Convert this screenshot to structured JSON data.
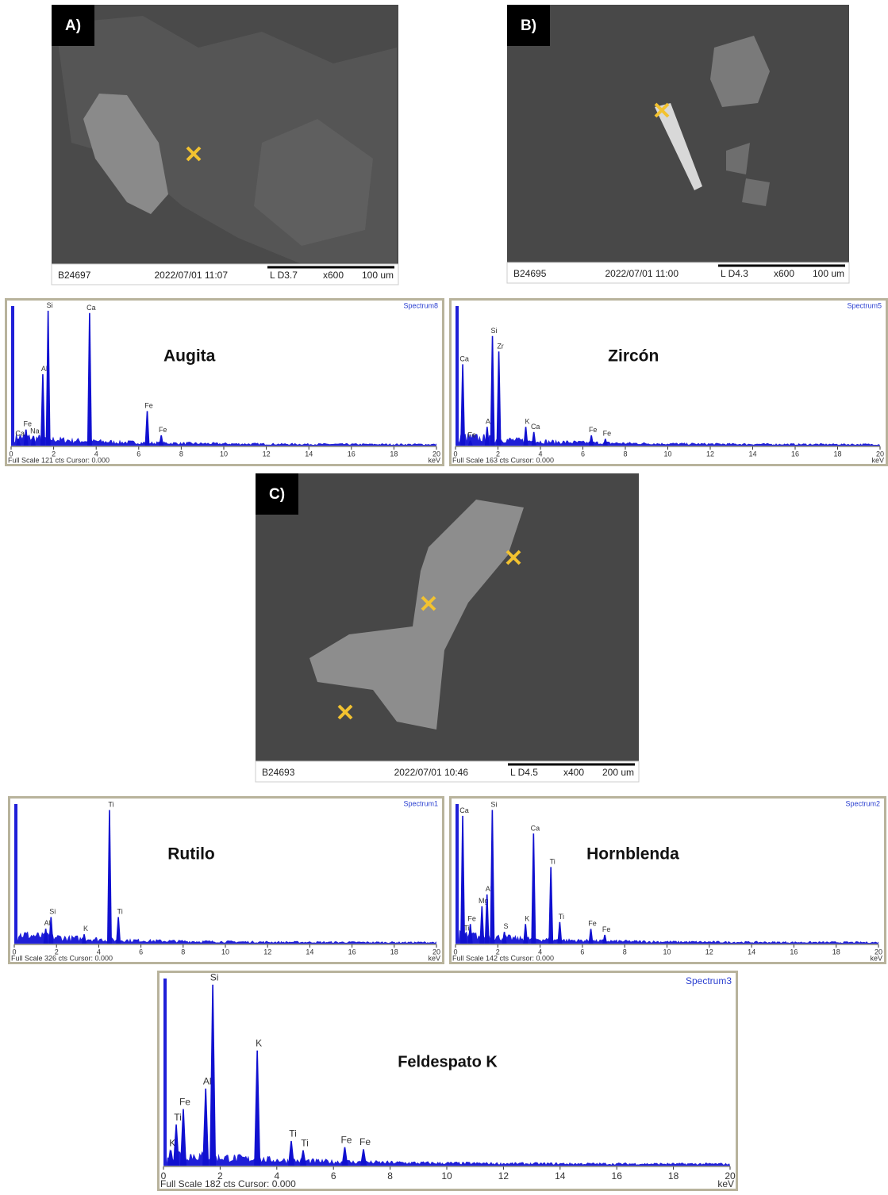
{
  "sem_images": [
    {
      "panel": "A)",
      "sample": "B24697",
      "datetime": "2022/07/01  11:07",
      "params": "L D3.7",
      "mag": "x600",
      "scale": "100 um"
    },
    {
      "panel": "B)",
      "sample": "B24695",
      "datetime": "2022/07/01  11:00",
      "params": "L D4.3",
      "mag": "x600",
      "scale": "100 um"
    },
    {
      "panel": "C)",
      "sample": "B24693",
      "datetime": "2022/07/01  10:46",
      "params": "L D4.5",
      "mag": "x400",
      "scale": "200 um"
    }
  ],
  "spectra": [
    {
      "mineral": "Augita",
      "spectrum": "Spectrum8",
      "footer": "Full Scale 121 cts Cursor: 0.000",
      "unit": "keV",
      "xlim": [
        0,
        20
      ],
      "xticks": [
        0,
        2,
        4,
        6,
        8,
        10,
        12,
        14,
        16,
        18,
        20
      ],
      "ylim": [
        0,
        121
      ],
      "peaks": [
        {
          "element": "Ca",
          "kev": 0.34,
          "cts": 6
        },
        {
          "element": "Fe",
          "kev": 0.7,
          "cts": 14
        },
        {
          "element": "Na",
          "kev": 1.04,
          "cts": 8
        },
        {
          "element": "Al",
          "kev": 1.49,
          "cts": 62
        },
        {
          "element": "Si",
          "kev": 1.74,
          "cts": 117
        },
        {
          "element": "Ca",
          "kev": 3.69,
          "cts": 115
        },
        {
          "element": "Fe",
          "kev": 6.4,
          "cts": 30
        },
        {
          "element": "Fe",
          "kev": 7.06,
          "cts": 9
        }
      ]
    },
    {
      "mineral": "Zircón",
      "spectrum": "Spectrum5",
      "footer": "Full Scale 163 cts Cursor: 0.000",
      "unit": "keV",
      "xlim": [
        0,
        20
      ],
      "xticks": [
        0,
        2,
        4,
        6,
        8,
        10,
        12,
        14,
        16,
        18,
        20
      ],
      "ylim": [
        0,
        163
      ],
      "peaks": [
        {
          "element": "Ca",
          "kev": 0.34,
          "cts": 95
        },
        {
          "element": "Fe",
          "kev": 0.7,
          "cts": 6
        },
        {
          "element": "Al",
          "kev": 1.49,
          "cts": 22
        },
        {
          "element": "Si",
          "kev": 1.74,
          "cts": 128
        },
        {
          "element": "Zr",
          "kev": 2.04,
          "cts": 110
        },
        {
          "element": "K",
          "kev": 3.31,
          "cts": 22
        },
        {
          "element": "Ca",
          "kev": 3.69,
          "cts": 16
        },
        {
          "element": "Fe",
          "kev": 6.4,
          "cts": 12
        },
        {
          "element": "Fe",
          "kev": 7.06,
          "cts": 8
        }
      ]
    },
    {
      "mineral": "Rutilo",
      "spectrum": "Spectrum1",
      "footer": "Full Scale 326 cts Cursor: 0.000",
      "unit": "keV",
      "xlim": [
        0,
        20
      ],
      "xticks": [
        0,
        2,
        4,
        6,
        8,
        10,
        12,
        14,
        16,
        18,
        20
      ],
      "ylim": [
        0,
        326
      ],
      "peaks": [
        {
          "element": "Al",
          "kev": 1.49,
          "cts": 35
        },
        {
          "element": "Si",
          "kev": 1.74,
          "cts": 62
        },
        {
          "element": "K",
          "kev": 3.31,
          "cts": 22
        },
        {
          "element": "Ti",
          "kev": 4.51,
          "cts": 312
        },
        {
          "element": "Ti",
          "kev": 4.93,
          "cts": 62
        }
      ]
    },
    {
      "mineral": "Hornblenda",
      "spectrum": "Spectrum2",
      "footer": "Full Scale 142 cts Cursor: 0.000",
      "unit": "keV",
      "xlim": [
        0,
        20
      ],
      "xticks": [
        0,
        2,
        4,
        6,
        8,
        10,
        12,
        14,
        16,
        18,
        20
      ],
      "ylim": [
        0,
        142
      ],
      "peaks": [
        {
          "element": "Ca",
          "kev": 0.34,
          "cts": 130
        },
        {
          "element": "Ti",
          "kev": 0.45,
          "cts": 10
        },
        {
          "element": "Fe",
          "kev": 0.7,
          "cts": 20
        },
        {
          "element": "Mg",
          "kev": 1.25,
          "cts": 38
        },
        {
          "element": "Al",
          "kev": 1.49,
          "cts": 50
        },
        {
          "element": "Si",
          "kev": 1.74,
          "cts": 136
        },
        {
          "element": "S",
          "kev": 2.31,
          "cts": 12
        },
        {
          "element": "K",
          "kev": 3.31,
          "cts": 20
        },
        {
          "element": "Ca",
          "kev": 3.69,
          "cts": 112
        },
        {
          "element": "Ti",
          "kev": 4.51,
          "cts": 78
        },
        {
          "element": "Ti",
          "kev": 4.93,
          "cts": 22
        },
        {
          "element": "Fe",
          "kev": 6.4,
          "cts": 15
        },
        {
          "element": "Fe",
          "kev": 7.06,
          "cts": 9
        }
      ]
    },
    {
      "mineral": "Feldespato K",
      "spectrum": "Spectrum3",
      "footer": "Full Scale 182 cts Cursor: 0.000",
      "unit": "keV",
      "xlim": [
        0,
        20
      ],
      "xticks": [
        0,
        2,
        4,
        6,
        8,
        10,
        12,
        14,
        16,
        18,
        20
      ],
      "ylim": [
        0,
        182
      ],
      "peaks": [
        {
          "element": "K",
          "kev": 0.26,
          "cts": 15
        },
        {
          "element": "Ti",
          "kev": 0.45,
          "cts": 40
        },
        {
          "element": "Fe",
          "kev": 0.7,
          "cts": 55
        },
        {
          "element": "Al",
          "kev": 1.49,
          "cts": 75
        },
        {
          "element": "Si",
          "kev": 1.74,
          "cts": 176
        },
        {
          "element": "K",
          "kev": 3.31,
          "cts": 112
        },
        {
          "element": "Ti",
          "kev": 4.51,
          "cts": 24
        },
        {
          "element": "Ti",
          "kev": 4.93,
          "cts": 15
        },
        {
          "element": "Fe",
          "kev": 6.4,
          "cts": 18
        },
        {
          "element": "Fe",
          "kev": 7.06,
          "cts": 16
        }
      ]
    }
  ]
}
